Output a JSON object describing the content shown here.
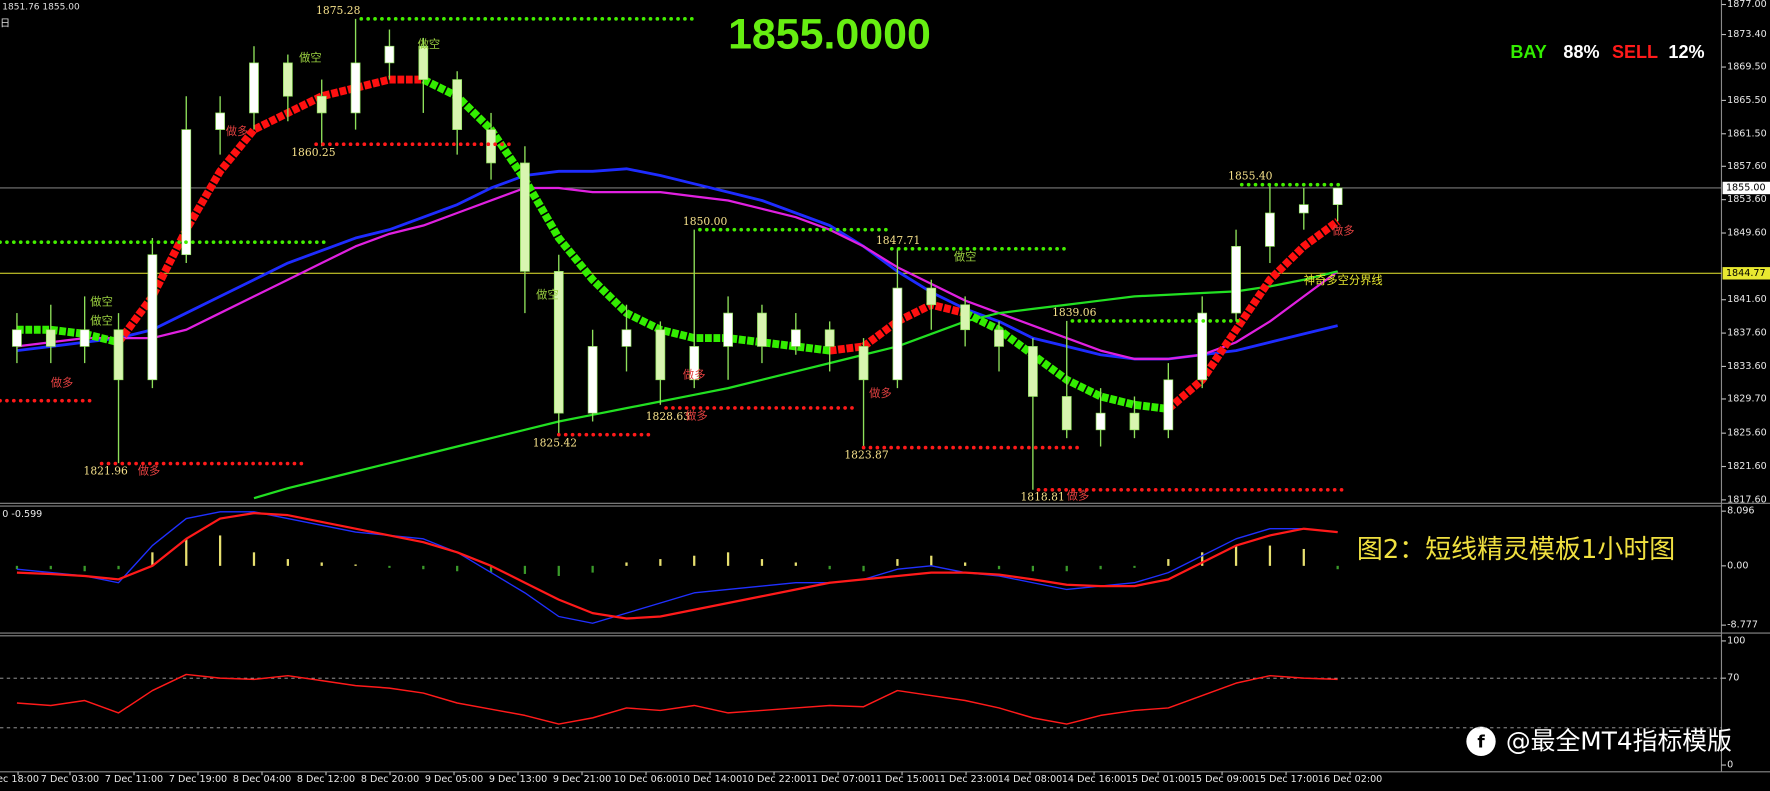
{
  "header": {
    "ohlc": "1851.76 1855.00",
    "period": "日",
    "price": "1855.0000",
    "bay": "BAY",
    "bay_pct": "88%",
    "sell": "SELL",
    "sell_pct": "12%",
    "caption": "图2：短线精灵模板1小时图",
    "watermark": "@最全MT4指标模版"
  },
  "time_axis": [
    "ec 18:00",
    "7 Dec 03:00",
    "7 Dec 11:00",
    "7 Dec 19:00",
    "8 Dec 04:00",
    "8 Dec 12:00",
    "8 Dec 20:00",
    "9 Dec 05:00",
    "9 Dec 13:00",
    "9 Dec 21:00",
    "10 Dec 06:00",
    "10 Dec 14:00",
    "10 Dec 22:00",
    "11 Dec 07:00",
    "11 Dec 15:00",
    "11 Dec 23:00",
    "14 Dec 08:00",
    "14 Dec 16:00",
    "15 Dec 01:00",
    "15 Dec 09:00",
    "15 Dec 17:00",
    "16 Dec 02:00"
  ],
  "chart_data": [
    {
      "type": "candlestick",
      "ylim": [
        1817.6,
        1877.0
      ],
      "yticks": [
        {
          "value": 1877,
          "label": "1877.00"
        },
        {
          "value": 1873.4,
          "label": "1873.40"
        },
        {
          "value": 1869.5,
          "label": "1869.50"
        },
        {
          "value": 1865.5,
          "label": "1865.50"
        },
        {
          "value": 1861.5,
          "label": "1861.50"
        },
        {
          "value": 1857.6,
          "label": "1857.60"
        },
        {
          "value": 1853.6,
          "label": "1853.60"
        },
        {
          "value": 1849.6,
          "label": "1849.60"
        },
        {
          "value": 1841.6,
          "label": "1841.60"
        },
        {
          "value": 1837.6,
          "label": "1837.60"
        },
        {
          "value": 1833.6,
          "label": "1833.60"
        },
        {
          "value": 1829.7,
          "label": "1829.70"
        },
        {
          "value": 1825.6,
          "label": "1825.60"
        },
        {
          "value": 1821.6,
          "label": "1821.60"
        },
        {
          "value": 1817.6,
          "label": "1817.60"
        }
      ],
      "up_color": "#ffffff",
      "down_color": "#d8f5b0",
      "wick_color": "#8ee05a",
      "candles": [
        [
          1836,
          1840,
          1834,
          1838
        ],
        [
          1838,
          1841,
          1834,
          1836
        ],
        [
          1836,
          1842,
          1834,
          1838
        ],
        [
          1838,
          1840,
          1822,
          1832
        ],
        [
          1832,
          1849,
          1831,
          1847
        ],
        [
          1847,
          1866,
          1846,
          1862
        ],
        [
          1862,
          1866,
          1859,
          1864
        ],
        [
          1864,
          1872,
          1862,
          1870
        ],
        [
          1870,
          1871,
          1863,
          1866
        ],
        [
          1866,
          1868,
          1860,
          1864
        ],
        [
          1864,
          1875.28,
          1862,
          1870
        ],
        [
          1870,
          1874,
          1868,
          1872
        ],
        [
          1872,
          1873,
          1864,
          1868
        ],
        [
          1868,
          1869,
          1859,
          1862
        ],
        [
          1862,
          1864,
          1856,
          1858
        ],
        [
          1858,
          1860,
          1840,
          1845
        ],
        [
          1845,
          1847,
          1825.42,
          1828
        ],
        [
          1828,
          1838,
          1827,
          1836
        ],
        [
          1836,
          1841,
          1833,
          1838
        ],
        [
          1838,
          1839,
          1829,
          1832
        ],
        [
          1832,
          1850,
          1831,
          1836
        ],
        [
          1836,
          1842,
          1832,
          1840
        ],
        [
          1840,
          1841,
          1834,
          1836
        ],
        [
          1836,
          1840,
          1835,
          1838
        ],
        [
          1838,
          1839,
          1833,
          1836
        ],
        [
          1836,
          1837,
          1823.87,
          1832
        ],
        [
          1832,
          1847.71,
          1831,
          1843
        ],
        [
          1843,
          1844,
          1838,
          1841
        ],
        [
          1841,
          1842,
          1836,
          1838
        ],
        [
          1838,
          1839,
          1833,
          1836
        ],
        [
          1836,
          1837,
          1818.81,
          1830
        ],
        [
          1830,
          1839.06,
          1825,
          1826
        ],
        [
          1826,
          1831,
          1824,
          1828
        ],
        [
          1828,
          1830,
          1825,
          1826
        ],
        [
          1826,
          1834,
          1825,
          1832
        ],
        [
          1832,
          1842,
          1831,
          1840
        ],
        [
          1840,
          1850,
          1839,
          1848
        ],
        [
          1848,
          1855.4,
          1846,
          1852
        ],
        [
          1852,
          1855,
          1850,
          1853
        ],
        [
          1853,
          1855,
          1851,
          1855
        ]
      ],
      "series": [
        {
          "color": "#1e2cff",
          "width": 2.5,
          "values": [
            1835.5,
            1836,
            1836.5,
            1837,
            1838,
            1840,
            1842,
            1844,
            1846,
            1847.5,
            1849,
            1850,
            1851.5,
            1853,
            1855,
            1856.5,
            1857,
            1857,
            1857.3,
            1856.5,
            1855.5,
            1854.5,
            1853.5,
            1852,
            1850.5,
            1848,
            1845,
            1842.5,
            1840.5,
            1839,
            1837,
            1836,
            1835,
            1834.5,
            1834.5,
            1835,
            1835.5,
            1836.5,
            1837.5,
            1838.5
          ]
        },
        {
          "color": "#e020e0",
          "width": 2,
          "values": [
            1836,
            1836.5,
            1837,
            1837,
            1837,
            1838,
            1840,
            1842,
            1844,
            1846,
            1848,
            1849.5,
            1850.5,
            1852,
            1853.5,
            1855,
            1855,
            1854.5,
            1854.5,
            1854.5,
            1854,
            1853.5,
            1852.5,
            1851.5,
            1850,
            1848,
            1845.5,
            1843.5,
            1841.5,
            1840,
            1838.5,
            1837,
            1835.5,
            1834.5,
            1834.5,
            1835,
            1836.5,
            1839,
            1842,
            1845
          ]
        },
        {
          "color": "#22e022",
          "width": 2,
          "values": [
            null,
            null,
            null,
            null,
            null,
            null,
            null,
            1817.8,
            1819,
            1820,
            1821,
            1822,
            1823,
            1824,
            1825,
            1826,
            1827,
            1827.8,
            1828.6,
            1829.4,
            1830.2,
            1831,
            1832,
            1833,
            1834,
            1835,
            1836,
            1837.5,
            1839,
            1840,
            1840.5,
            1841,
            1841.5,
            1842,
            1842.2,
            1842.4,
            1842.6,
            1843.2,
            1844,
            1845
          ]
        },
        {
          "color": "#33ee00",
          "width": 7,
          "values": [
            1838,
            1838,
            1837.5,
            1836.5,
            null,
            null,
            null,
            null,
            null,
            null,
            null,
            null,
            1868,
            1866,
            1862,
            1856,
            1849,
            1844,
            1840,
            1838,
            1837,
            1837,
            1836.5,
            1836,
            1835.5,
            null,
            null,
            null,
            1840,
            1838,
            1835,
            1832,
            1830,
            1829,
            1828.5,
            null,
            null,
            null,
            null,
            null
          ]
        },
        {
          "color": "#ff1010",
          "width": 7,
          "values": [
            null,
            null,
            null,
            1836.5,
            1842,
            1850,
            1857,
            1862,
            1864,
            1866,
            1867,
            1868,
            1868,
            null,
            null,
            null,
            null,
            null,
            null,
            null,
            null,
            null,
            null,
            null,
            1835.5,
            1836,
            1839,
            1841,
            1840,
            null,
            null,
            null,
            null,
            null,
            1828.5,
            1832,
            1838,
            1844,
            1848,
            1851
          ]
        }
      ],
      "price_line": {
        "value": 1855,
        "label": "1855.00",
        "color": "#9a9a9a"
      },
      "divider": {
        "value": 1844.77,
        "label": "1844.77",
        "text": "神奇多空分界线",
        "color": "#e8e830"
      },
      "levels": [
        {
          "value": 1875.28,
          "text": "1875.28",
          "color": "#44ee00"
        },
        {
          "value": 1860.25,
          "text": "1860.25",
          "color": "#ff1a1a"
        },
        {
          "value": 1850,
          "text": "1850.00",
          "color": "#44ee00"
        },
        {
          "value": 1847.71,
          "text": "1847.71",
          "color": "#44ee00"
        },
        {
          "value": 1839.06,
          "text": "1839.06",
          "color": "#44ee00"
        },
        {
          "value": 1855.4,
          "text": "1855.40",
          "color": "#44ee00"
        },
        {
          "value": 1848.5,
          "color": "#44ee00"
        },
        {
          "value": 1821.96,
          "text": "1821.96",
          "color": "#ff1a1a"
        },
        {
          "value": 1825.42,
          "text": "1825.42",
          "color": "#ff1a1a"
        },
        {
          "value": 1828.63,
          "text": "1828.63",
          "color": "#ff1a1a"
        },
        {
          "value": 1823.87,
          "text": "1823.87",
          "color": "#ff1a1a"
        },
        {
          "value": 1818.81,
          "text": "1818.81",
          "color": "#ff1a1a"
        },
        {
          "value": 1829.5,
          "color": "#ff1a1a"
        }
      ],
      "signals": [
        "做空",
        "做空",
        "做空",
        "做空",
        "做空",
        "做空",
        "做多",
        "做多",
        "做多",
        "做多",
        "做多",
        "做多",
        "做多",
        "做多"
      ]
    },
    {
      "type": "macd",
      "subtitle": "0 -0.599",
      "ylim": [
        -8.777,
        8.096
      ],
      "yticks": [
        8.096,
        {
          "value": 0,
          "label": "0.00"
        },
        -8.777
      ],
      "hist_up_color": "#e8e070",
      "hist_down_color": "#3a9a2a",
      "histogram": [
        -0.5,
        -0.5,
        -0.8,
        -0.5,
        2,
        4,
        4.5,
        2,
        1,
        0.5,
        0.2,
        -0.3,
        -0.5,
        -0.8,
        -1,
        -1.2,
        -1.5,
        -1,
        0.5,
        1,
        1.5,
        2,
        1,
        0.5,
        -0.5,
        -0.8,
        1,
        1.5,
        0.5,
        -0.5,
        -0.8,
        -0.8,
        -0.5,
        -0.3,
        1,
        2,
        3,
        3,
        2.5,
        -0.5
      ],
      "series": [
        {
          "color": "#2030ff",
          "width": 1.2,
          "values": [
            -0.5,
            -1,
            -1.5,
            -2.5,
            3,
            7,
            8,
            8,
            7,
            6,
            5,
            4.5,
            4,
            2,
            -1,
            -4,
            -7.5,
            -8.5,
            -7,
            -5.5,
            -4,
            -3.5,
            -3,
            -2.5,
            -2.5,
            -2,
            -0.5,
            0,
            -1,
            -1.5,
            -2.5,
            -3.5,
            -3,
            -2.5,
            -1,
            1.5,
            4,
            5.5,
            5.5,
            5
          ]
        },
        {
          "color": "#ff1a1a",
          "width": 2,
          "values": [
            -1,
            -1.2,
            -1.5,
            -2,
            0,
            4,
            7,
            7.8,
            7.5,
            6.5,
            5.5,
            4.5,
            3.5,
            2,
            0,
            -2.5,
            -5,
            -7,
            -7.8,
            -7.5,
            -6.5,
            -5.5,
            -4.5,
            -3.5,
            -2.5,
            -2,
            -1.5,
            -1,
            -1,
            -1.3,
            -2,
            -2.8,
            -3,
            -3,
            -2,
            0.5,
            3,
            4.5,
            5.5,
            5
          ]
        }
      ]
    },
    {
      "type": "rsi",
      "ylim": [
        0,
        100
      ],
      "yticks": [
        100,
        70,
        0
      ],
      "levels": [
        70,
        30
      ],
      "series": [
        {
          "color": "#ff1a1a",
          "width": 1.3,
          "values": [
            50,
            48,
            52,
            42,
            60,
            73,
            70,
            69,
            72,
            68,
            64,
            62,
            58,
            50,
            45,
            40,
            33,
            38,
            46,
            44,
            48,
            42,
            44,
            46,
            48,
            47,
            60,
            56,
            52,
            46,
            38,
            33,
            40,
            44,
            46,
            56,
            66,
            72,
            70,
            69
          ]
        }
      ]
    }
  ]
}
